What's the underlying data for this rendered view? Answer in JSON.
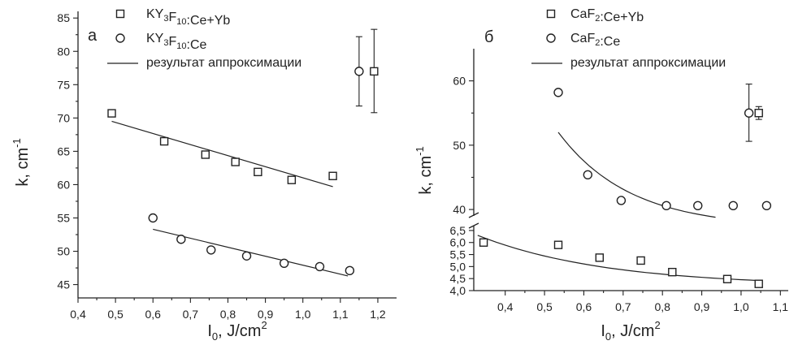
{
  "chart_data": [
    {
      "panel_label": "а",
      "type": "scatter",
      "xlabel_main": "I",
      "xlabel_sub": "0",
      "xlabel_unit": ", J/cm",
      "xlabel_sup": "2",
      "ylabel_main": "k, cm",
      "ylabel_sup": "-1",
      "xlim": [
        0.4,
        1.25
      ],
      "ylim": [
        43,
        86
      ],
      "x_ticks": [
        "0,4",
        "0,5",
        "0,6",
        "0,7",
        "0,8",
        "0,9",
        "1,0",
        "1,1",
        "1,2"
      ],
      "x_tick_values": [
        0.4,
        0.5,
        0.6,
        0.7,
        0.8,
        0.9,
        1.0,
        1.1,
        1.2
      ],
      "y_ticks": [
        "45",
        "50",
        "55",
        "60",
        "65",
        "70",
        "75",
        "80",
        "85"
      ],
      "y_tick_values": [
        45,
        50,
        55,
        60,
        65,
        70,
        75,
        80,
        85
      ],
      "legend": [
        {
          "marker": "square",
          "parts": [
            {
              "t": "KY"
            },
            {
              "t": "3",
              "sub": true
            },
            {
              "t": "F"
            },
            {
              "t": "10",
              "sub": true
            },
            {
              "t": ":Ce+Yb"
            }
          ]
        },
        {
          "marker": "circle",
          "parts": [
            {
              "t": "KY"
            },
            {
              "t": "3",
              "sub": true
            },
            {
              "t": "F"
            },
            {
              "t": "10",
              "sub": true
            },
            {
              "t": ":Ce"
            }
          ]
        },
        {
          "marker": "line",
          "parts": [
            {
              "t": "результат аппроксимации"
            }
          ]
        }
      ],
      "series": [
        {
          "marker": "square",
          "x": [
            0.49,
            0.63,
            0.74,
            0.82,
            0.88,
            0.97,
            1.08
          ],
          "y": [
            70.7,
            66.5,
            64.5,
            63.4,
            61.9,
            60.7,
            61.3
          ]
        },
        {
          "marker": "circle",
          "x": [
            0.6,
            0.675,
            0.755,
            0.85,
            0.95,
            1.045,
            1.125
          ],
          "y": [
            55.0,
            51.8,
            50.2,
            49.3,
            48.2,
            47.7,
            47.1
          ]
        }
      ],
      "fits": [
        {
          "x": [
            0.49,
            1.08
          ],
          "y": [
            69.5,
            59.7
          ]
        },
        {
          "x": [
            0.6,
            1.12
          ],
          "y": [
            53.3,
            46.3
          ]
        }
      ],
      "error_points": [
        {
          "marker": "circle",
          "x": 1.15,
          "y": 77.0,
          "yerr": [
            71.8,
            82.2
          ]
        },
        {
          "marker": "square",
          "x": 1.19,
          "y": 77.0,
          "yerr": [
            70.8,
            83.3
          ]
        }
      ]
    },
    {
      "panel_label": "б",
      "type": "scatter",
      "xlabel_main": "I",
      "xlabel_sub": "0",
      "xlabel_unit": ", J/cm",
      "xlabel_sup": "2",
      "ylabel_main": "k, cm",
      "ylabel_sup": "-1",
      "xlim": [
        0.32,
        1.12
      ],
      "y_break": true,
      "ylim_upper": [
        39,
        65
      ],
      "ylim_lower": [
        4.0,
        6.7
      ],
      "x_ticks": [
        "0,4",
        "0,5",
        "0,6",
        "0,7",
        "0,8",
        "0,9",
        "1,0",
        "1,1"
      ],
      "x_tick_values": [
        0.4,
        0.5,
        0.6,
        0.7,
        0.8,
        0.9,
        1.0,
        1.1
      ],
      "y_ticks_upper": [
        "40",
        "50",
        "60"
      ],
      "y_tick_values_upper": [
        40,
        50,
        60
      ],
      "y_ticks_lower": [
        "4,0",
        "4,5",
        "5,0",
        "5,5",
        "6,0",
        "6,5"
      ],
      "y_tick_values_lower": [
        4.0,
        4.5,
        5.0,
        5.5,
        6.0,
        6.5
      ],
      "legend": [
        {
          "marker": "square",
          "parts": [
            {
              "t": "CaF"
            },
            {
              "t": "2",
              "sub": true
            },
            {
              "t": ":Ce+Yb"
            }
          ]
        },
        {
          "marker": "circle",
          "parts": [
            {
              "t": "CaF"
            },
            {
              "t": "2",
              "sub": true
            },
            {
              "t": ":Ce"
            }
          ]
        },
        {
          "marker": "line",
          "parts": [
            {
              "t": "результат аппроксимации"
            }
          ]
        }
      ],
      "series_lower": [
        {
          "marker": "square",
          "x": [
            0.345,
            0.535,
            0.64,
            0.745,
            0.825,
            0.965,
            1.045
          ],
          "y": [
            6.0,
            5.9,
            5.37,
            5.25,
            4.77,
            4.48,
            4.28
          ]
        }
      ],
      "series_upper": [
        {
          "marker": "circle",
          "x": [
            0.535,
            0.61,
            0.695,
            0.81,
            0.89,
            0.98,
            1.065
          ],
          "y": [
            58.2,
            45.4,
            41.4,
            40.6,
            40.6,
            40.6,
            40.6
          ]
        }
      ],
      "fit_upper": {
        "x0": 0.535,
        "x1": 0.935,
        "a": 52.0,
        "b": 38.8
      },
      "fit_lower": {
        "x0": 0.33,
        "x1": 1.045,
        "a": 6.3,
        "b": 4.42
      },
      "error_points_upper": [
        {
          "marker": "circle",
          "x": 1.02,
          "y": 55.0,
          "yerr": [
            50.6,
            59.5
          ]
        },
        {
          "marker": "square",
          "x": 1.045,
          "y": 55.0,
          "yerr": [
            54.0,
            56.0
          ]
        }
      ]
    }
  ]
}
